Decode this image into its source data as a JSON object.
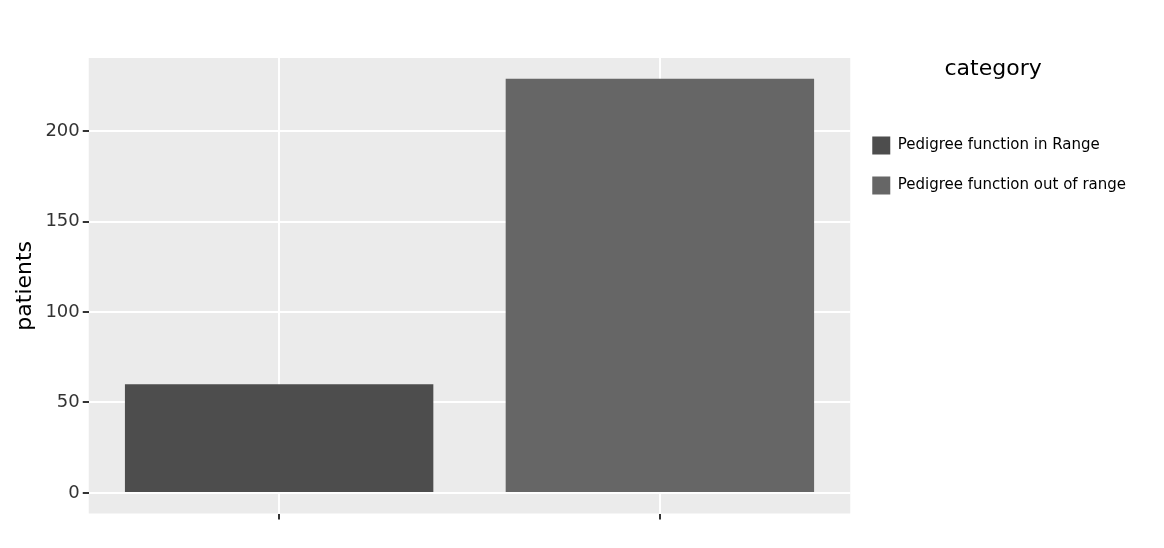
{
  "chart_data": {
    "type": "bar",
    "ylabel": "patients",
    "legend_title": "category",
    "categories": [
      null,
      null
    ],
    "series": [
      {
        "name": "Pedigree function in Range",
        "color": "#4d4d4d",
        "values": [
          60,
          null
        ]
      },
      {
        "name": "Pedigree function out of range",
        "color": "#666666",
        "values": [
          null,
          229
        ]
      }
    ],
    "ylim": [
      -11.45,
      240.45
    ],
    "yticks": [
      0,
      50,
      100,
      150,
      200
    ],
    "grid": true,
    "legend": "right"
  }
}
